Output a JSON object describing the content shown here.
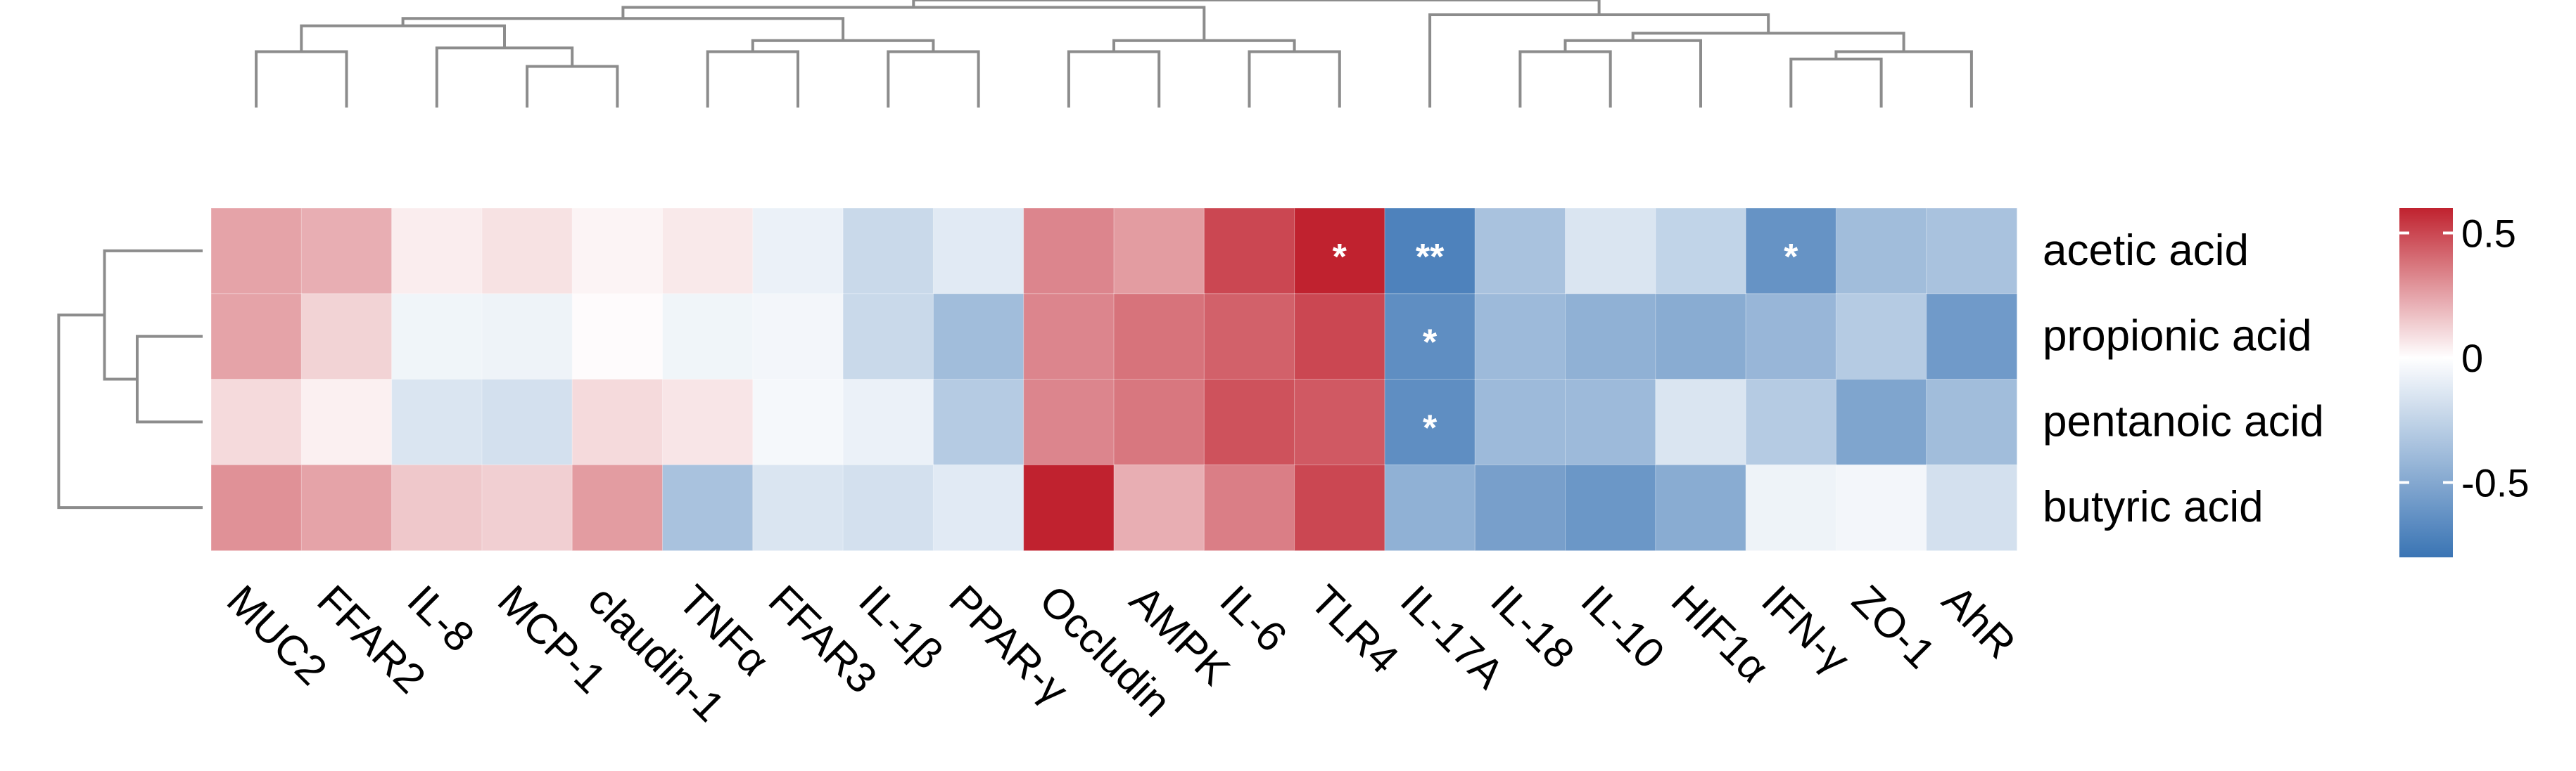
{
  "chart_data": {
    "type": "heatmap",
    "title": "",
    "rows": [
      "acetic acid",
      "propionic acid",
      "pentanoic acid",
      "butyric acid"
    ],
    "columns": [
      "MUC2",
      "FFAR2",
      "IL-8",
      "MCP-1",
      "claudin-1",
      "TNFα",
      "FFAR3",
      "IL-1β",
      "PPAR-γ",
      "Occludin",
      "AMPK",
      "IL-6",
      "TLR4",
      "IL-17A",
      "IL-18",
      "IL-10",
      "HIF1α",
      "IFN-γ",
      "ZO-1",
      "AhR"
    ],
    "values": [
      [
        0.25,
        0.22,
        0.05,
        0.08,
        0.03,
        0.06,
        -0.08,
        -0.22,
        -0.12,
        0.33,
        0.27,
        0.5,
        0.6,
        -0.72,
        -0.35,
        -0.15,
        -0.25,
        -0.62,
        -0.38,
        -0.35
      ],
      [
        0.25,
        0.12,
        -0.06,
        -0.07,
        0.01,
        -0.06,
        -0.05,
        -0.22,
        -0.38,
        0.33,
        0.38,
        0.43,
        0.5,
        -0.65,
        -0.4,
        -0.45,
        -0.48,
        -0.42,
        -0.3,
        -0.58
      ],
      [
        0.1,
        0.04,
        -0.15,
        -0.18,
        0.1,
        0.07,
        -0.04,
        -0.08,
        -0.3,
        0.33,
        0.37,
        0.47,
        0.45,
        -0.65,
        -0.4,
        -0.4,
        -0.15,
        -0.3,
        -0.52,
        -0.38
      ],
      [
        0.3,
        0.25,
        0.15,
        0.13,
        0.27,
        -0.35,
        -0.15,
        -0.18,
        -0.12,
        0.62,
        0.22,
        0.35,
        0.5,
        -0.45,
        -0.55,
        -0.6,
        -0.48,
        -0.07,
        -0.05,
        -0.18
      ]
    ],
    "annotations": [
      {
        "row": 0,
        "col": 12,
        "text": "*"
      },
      {
        "row": 0,
        "col": 13,
        "text": "**"
      },
      {
        "row": 0,
        "col": 17,
        "text": "*"
      },
      {
        "row": 1,
        "col": 13,
        "text": "*"
      },
      {
        "row": 2,
        "col": 13,
        "text": "*"
      }
    ],
    "colorbar": {
      "min": -0.8,
      "max": 0.6,
      "ticks": [
        0.5,
        0,
        -0.5
      ],
      "tick_labels": [
        "0.5",
        "0",
        "-0.5"
      ],
      "colors": {
        "low": "#3a74b4",
        "mid": "#ffffff",
        "high": "#c0222f"
      }
    },
    "column_dendrogram": [
      [
        0,
        1,
        1.4
      ],
      [
        3,
        4,
        1.0
      ],
      [
        2,
        21,
        1.5
      ],
      [
        20,
        22,
        2.1
      ],
      [
        5,
        6,
        1.4
      ],
      [
        7,
        8,
        1.4
      ],
      [
        24,
        25,
        1.7
      ],
      [
        23,
        26,
        2.3
      ],
      [
        9,
        10,
        1.4
      ],
      [
        11,
        12,
        1.4
      ],
      [
        28,
        29,
        1.7
      ],
      [
        27,
        30,
        2.6
      ],
      [
        14,
        15,
        1.4
      ],
      [
        16,
        32,
        1.7
      ],
      [
        17,
        18,
        1.2
      ],
      [
        19,
        34,
        1.4
      ],
      [
        33,
        35,
        1.9
      ],
      [
        13,
        36,
        2.4
      ],
      [
        31,
        37,
        2.8
      ]
    ],
    "row_dendrogram": [
      [
        1,
        2,
        1.0
      ],
      [
        0,
        4,
        1.5
      ],
      [
        3,
        5,
        2.2
      ]
    ]
  }
}
